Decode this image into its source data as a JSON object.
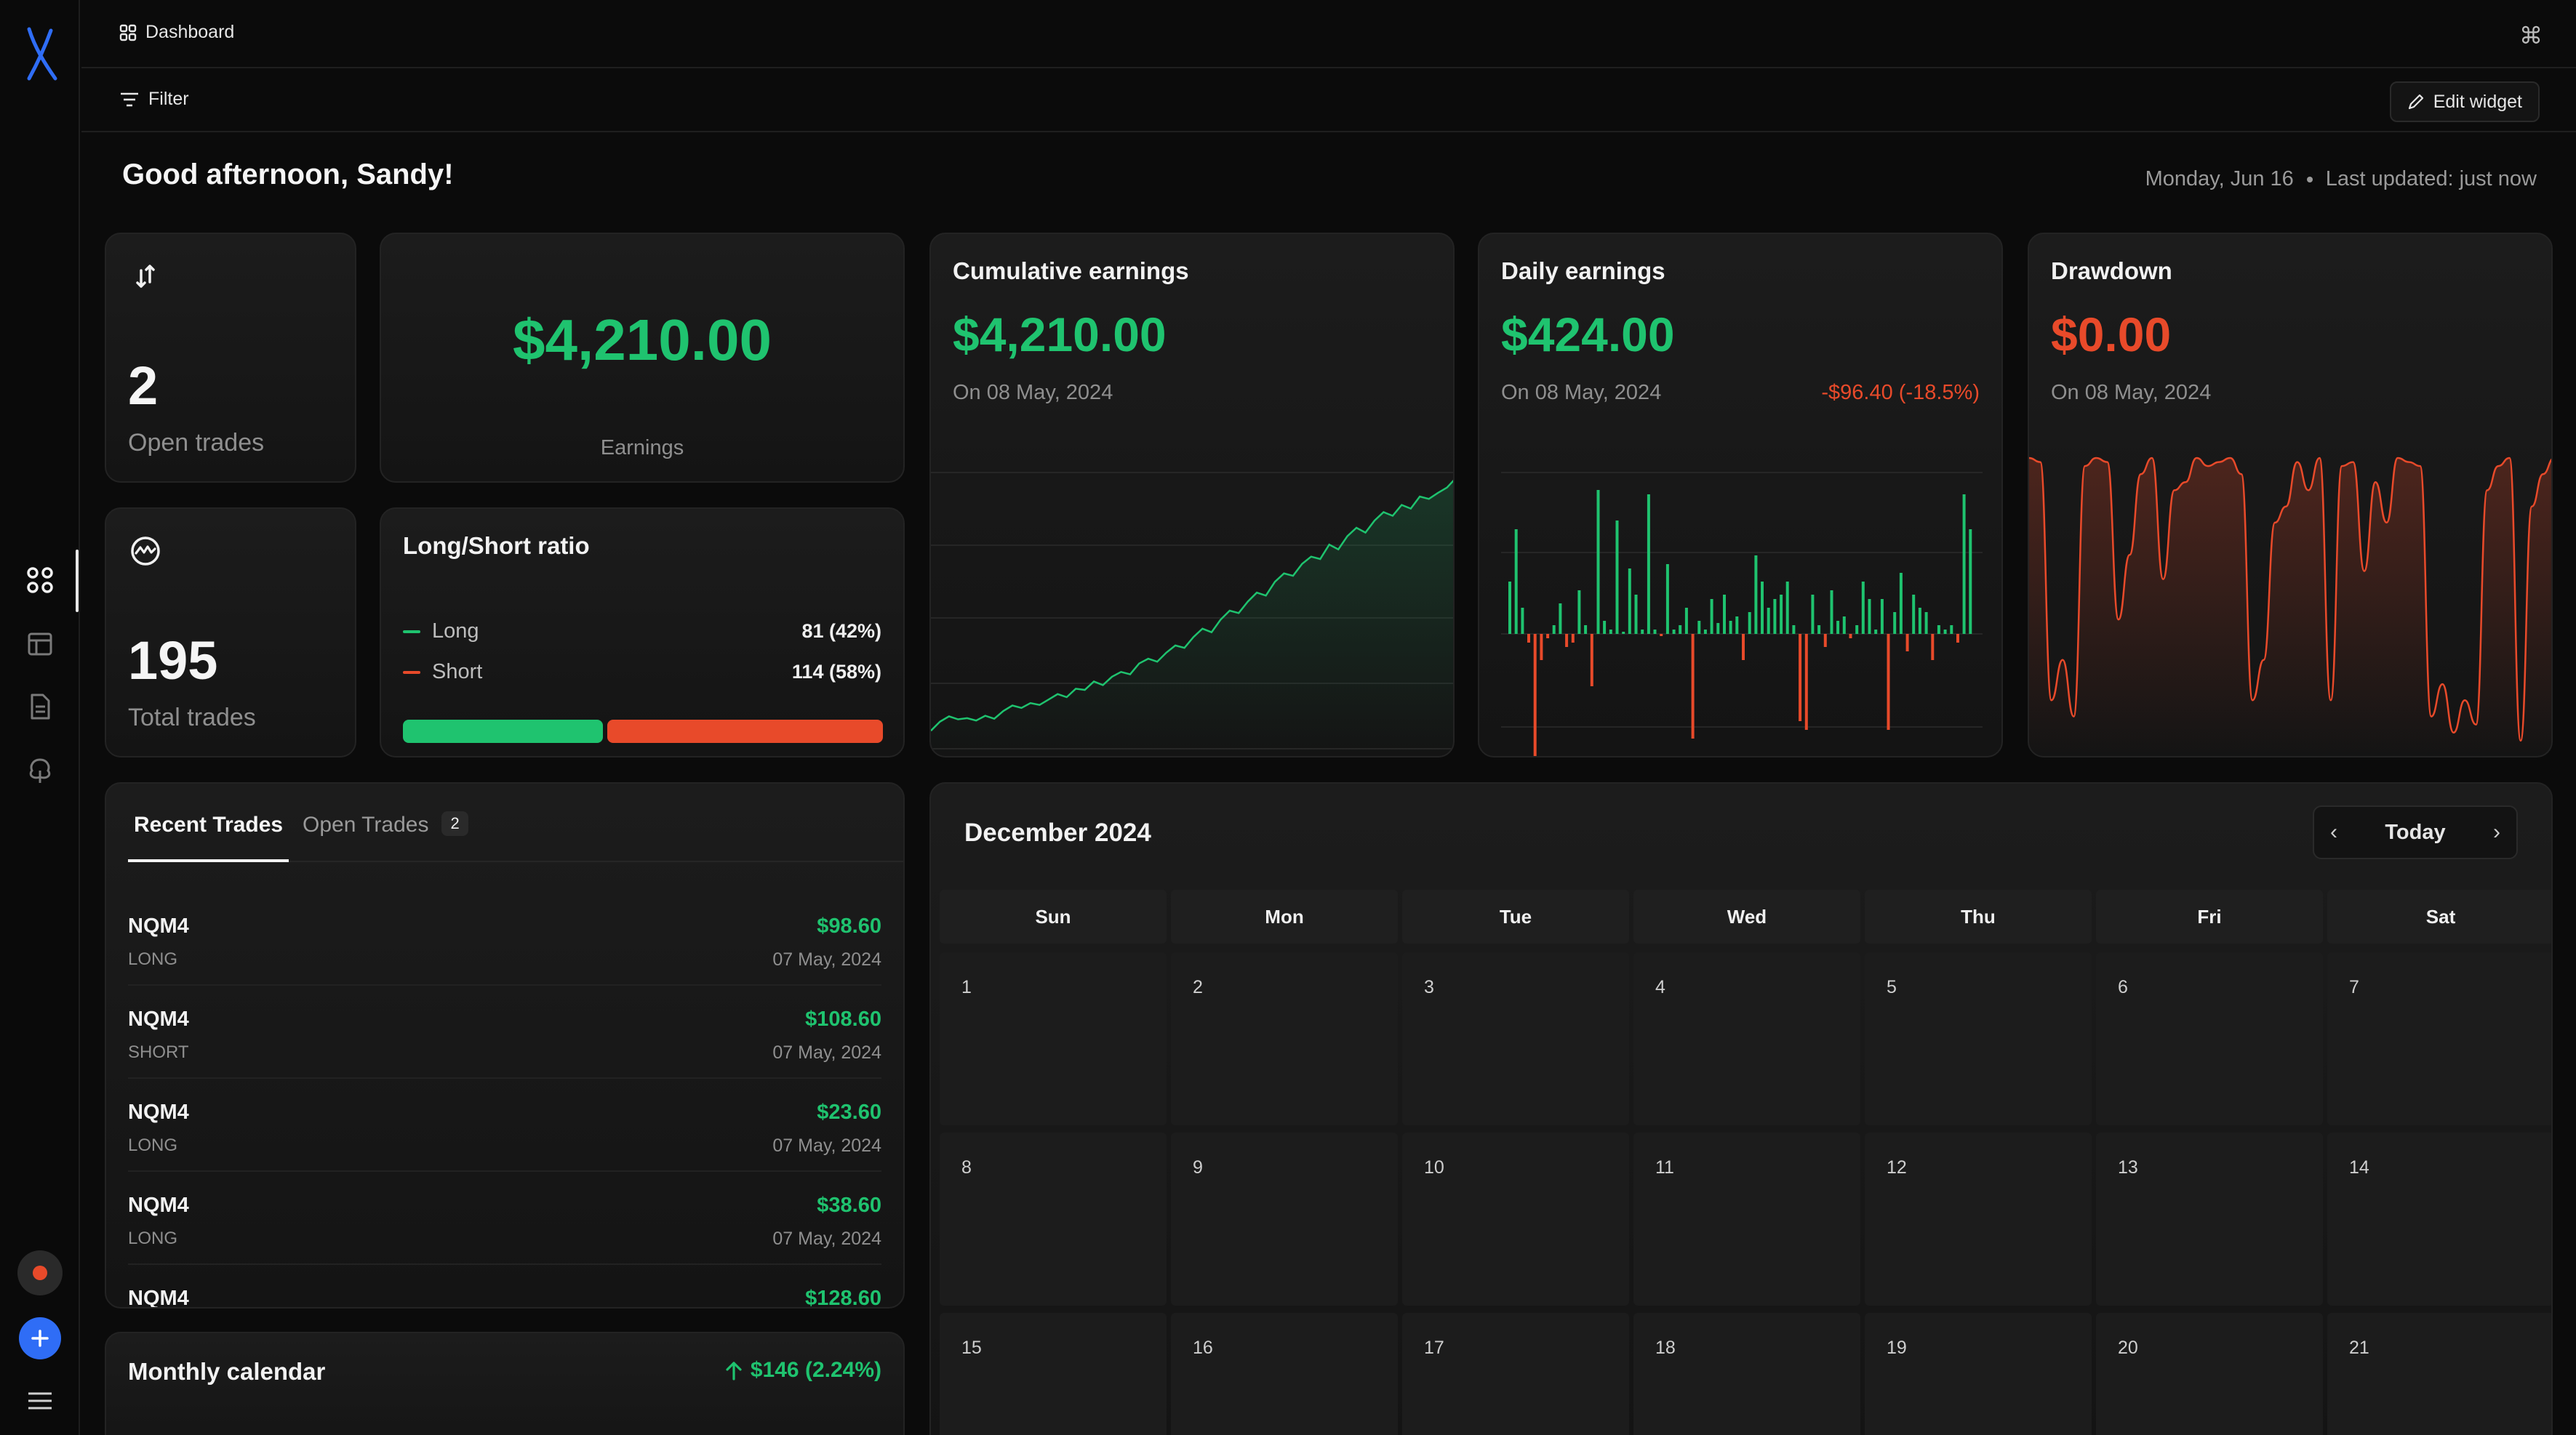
{
  "header": {
    "breadcrumb": "Dashboard",
    "filter_label": "Filter",
    "edit_widget_label": "Edit widget"
  },
  "greeting": "Good afternoon, Sandy!",
  "meta": {
    "date": "Monday, Jun 16",
    "updated": "Last updated: just now"
  },
  "stats": {
    "open_trades": {
      "value": "2",
      "label": "Open trades"
    },
    "total_trades": {
      "value": "195",
      "label": "Total trades"
    },
    "earnings": {
      "value": "$4,210.00",
      "label": "Earnings"
    }
  },
  "ratio": {
    "title": "Long/Short ratio",
    "long_label": "Long",
    "long_value": "81 (42%)",
    "long_pct": 42,
    "short_label": "Short",
    "short_value": "114 (58%)",
    "short_pct": 58
  },
  "cumulative": {
    "title": "Cumulative earnings",
    "value": "$4,210.00",
    "date": "On 08 May, 2024"
  },
  "daily": {
    "title": "Daily earnings",
    "value": "$424.00",
    "date": "On 08 May, 2024",
    "change": "-$96.40 (-18.5%)"
  },
  "drawdown": {
    "title": "Drawdown",
    "value": "$0.00",
    "date": "On 08 May, 2024"
  },
  "trades": {
    "tab_recent": "Recent Trades",
    "tab_open": "Open Trades",
    "open_count": "2",
    "rows": [
      {
        "symbol": "NQM4",
        "side": "LONG",
        "amount": "$98.60",
        "date": "07 May, 2024"
      },
      {
        "symbol": "NQM4",
        "side": "SHORT",
        "amount": "$108.60",
        "date": "07 May, 2024"
      },
      {
        "symbol": "NQM4",
        "side": "LONG",
        "amount": "$23.60",
        "date": "07 May, 2024"
      },
      {
        "symbol": "NQM4",
        "side": "LONG",
        "amount": "$38.60",
        "date": "07 May, 2024"
      },
      {
        "symbol": "NQM4",
        "side": "",
        "amount": "$128.60",
        "date": ""
      }
    ]
  },
  "monthly": {
    "title": "Monthly calendar",
    "change": "$146 (2.24%)"
  },
  "calendar": {
    "title": "December 2024",
    "today_label": "Today",
    "weekdays": [
      "Sun",
      "Mon",
      "Tue",
      "Wed",
      "Thu",
      "Fri",
      "Sat"
    ],
    "days": [
      "1",
      "2",
      "3",
      "4",
      "5",
      "6",
      "7",
      "8",
      "9",
      "10",
      "11",
      "12",
      "13",
      "14",
      "15",
      "16",
      "17",
      "18",
      "19",
      "20",
      "21"
    ]
  },
  "colors": {
    "green": "#1fc36f",
    "red": "#e84a2a",
    "blue": "#2f6df6"
  },
  "chart_data": [
    {
      "type": "line",
      "title": "Cumulative earnings",
      "values": [
        0,
        150,
        240,
        190,
        210,
        170,
        250,
        200,
        330,
        420,
        380,
        460,
        430,
        520,
        610,
        560,
        700,
        680,
        820,
        760,
        900,
        980,
        940,
        1120,
        1200,
        1150,
        1300,
        1420,
        1380,
        1560,
        1700,
        1640,
        1850,
        2000,
        1960,
        2150,
        2300,
        2250,
        2480,
        2620,
        2580,
        2780,
        2900,
        2860,
        3100,
        3020,
        3240,
        3380,
        3300,
        3500,
        3640,
        3580,
        3760,
        3700,
        3900,
        3860,
        3960,
        4050,
        4210
      ]
    },
    {
      "type": "bar",
      "title": "Daily earnings",
      "values": [
        120,
        240,
        60,
        -20,
        -280,
        -60,
        -10,
        20,
        70,
        -30,
        -20,
        100,
        20,
        -120,
        330,
        30,
        10,
        260,
        5,
        150,
        90,
        10,
        320,
        10,
        -5,
        160,
        10,
        20,
        60,
        -240,
        30,
        10,
        80,
        25,
        90,
        30,
        40,
        -60,
        50,
        180,
        120,
        60,
        80,
        90,
        120,
        20,
        -200,
        -220,
        90,
        20,
        -30,
        100,
        30,
        40,
        -10,
        20,
        120,
        80,
        10,
        80,
        -220,
        50,
        140,
        -40,
        90,
        60,
        50,
        -60,
        20,
        10,
        20,
        -20,
        320,
        240
      ]
    },
    {
      "type": "line",
      "title": "Drawdown",
      "values": [
        0,
        -5,
        -300,
        -250,
        -320,
        -10,
        0,
        -5,
        -200,
        -120,
        -20,
        0,
        -150,
        -40,
        -30,
        0,
        -10,
        -5,
        0,
        -20,
        -300,
        -250,
        -80,
        -60,
        -5,
        -40,
        0,
        -300,
        -10,
        -5,
        -140,
        -30,
        -80,
        0,
        -5,
        -10,
        -320,
        -280,
        -340,
        -300,
        -330,
        -40,
        -10,
        0,
        -350,
        -60,
        -20,
        0
      ]
    }
  ]
}
